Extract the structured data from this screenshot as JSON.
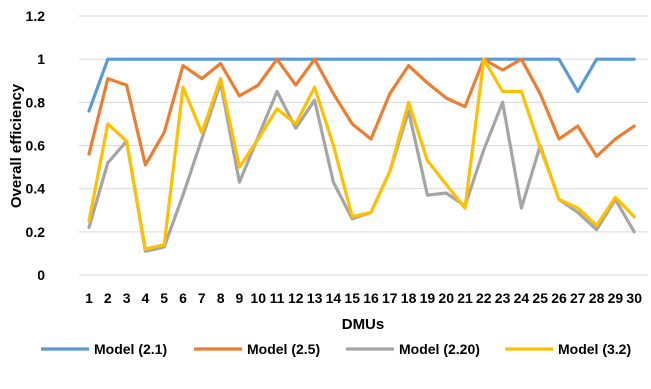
{
  "chart_data": {
    "type": "line",
    "title": "",
    "xlabel": "DMUs",
    "ylabel": "Overall efficiency",
    "ylim": [
      0,
      1.2
    ],
    "yticks": [
      "0",
      "0.2",
      "0.4",
      "0.6",
      "0.8",
      "1",
      "1.2"
    ],
    "categories": [
      "1",
      "2",
      "3",
      "4",
      "5",
      "6",
      "7",
      "8",
      "9",
      "10",
      "11",
      "12",
      "13",
      "14",
      "15",
      "16",
      "17",
      "18",
      "19",
      "20",
      "21",
      "22",
      "23",
      "24",
      "25",
      "26",
      "27",
      "28",
      "29",
      "30"
    ],
    "grid": true,
    "legend_position": "bottom",
    "series": [
      {
        "name": "Model (2.1)",
        "color": "#5B9BD5",
        "values": [
          0.76,
          1,
          1,
          1,
          1,
          1,
          1,
          1,
          1,
          1,
          1,
          1,
          1,
          1,
          1,
          1,
          1,
          1,
          1,
          1,
          1,
          1,
          1,
          1,
          1,
          1,
          0.85,
          1,
          1,
          1
        ]
      },
      {
        "name": "Model (2.5)",
        "color": "#ED7D31",
        "values": [
          0.56,
          0.91,
          0.88,
          0.51,
          0.66,
          0.97,
          0.91,
          0.98,
          0.83,
          0.88,
          1,
          0.88,
          1,
          0.84,
          0.7,
          0.63,
          0.84,
          0.97,
          0.89,
          0.82,
          0.78,
          1,
          0.95,
          1,
          0.84,
          0.63,
          0.69,
          0.55,
          0.63,
          0.69
        ]
      },
      {
        "name": "Model (2.20)",
        "color": "#A5A5A5",
        "values": [
          0.22,
          0.52,
          0.62,
          0.11,
          0.13,
          0.37,
          0.63,
          0.89,
          0.43,
          0.64,
          0.85,
          0.68,
          0.81,
          0.43,
          0.26,
          0.29,
          0.48,
          0.76,
          0.37,
          0.38,
          0.32,
          0.58,
          0.8,
          0.31,
          0.6,
          0.35,
          0.29,
          0.21,
          0.35,
          0.2
        ]
      },
      {
        "name": "Model (3.2)",
        "color": "#FFC000",
        "values": [
          0.25,
          0.7,
          0.62,
          0.12,
          0.14,
          0.87,
          0.66,
          0.91,
          0.5,
          0.63,
          0.77,
          0.7,
          0.87,
          0.6,
          0.27,
          0.29,
          0.48,
          0.8,
          0.53,
          0.42,
          0.31,
          1,
          0.85,
          0.85,
          0.59,
          0.35,
          0.31,
          0.23,
          0.36,
          0.27
        ]
      }
    ]
  }
}
